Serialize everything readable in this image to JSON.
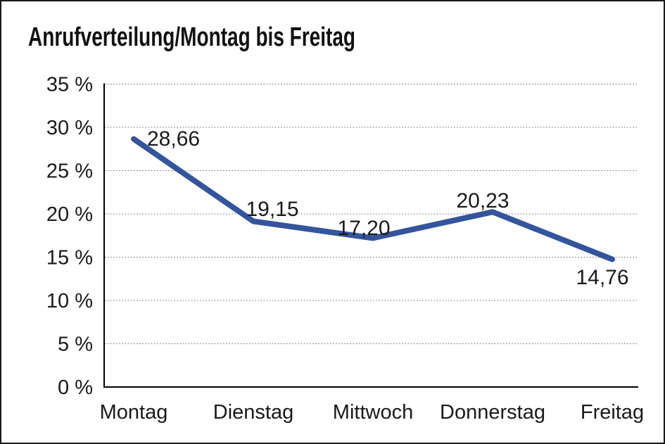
{
  "page": {
    "background": "#ffffff",
    "border_color": "#1a1a1a"
  },
  "chart_data": {
    "type": "line",
    "title": "Anrufverteilung/Montag bis Freitag",
    "categories": [
      "Montag",
      "Dienstag",
      "Mittwoch",
      "Donnerstag",
      "Freitag"
    ],
    "values": [
      28.66,
      19.15,
      17.2,
      20.23,
      14.76
    ],
    "data_labels": [
      "28,66",
      "19,15",
      "17,20",
      "20,23",
      "14,76"
    ],
    "y_ticks": [
      {
        "label": "35 %",
        "value": 35
      },
      {
        "label": "30 %",
        "value": 30
      },
      {
        "label": "25 %",
        "value": 25
      },
      {
        "label": "20 %",
        "value": 20
      },
      {
        "label": "15 %",
        "value": 15
      },
      {
        "label": "10 %",
        "value": 10
      },
      {
        "label": "5 %",
        "value": 5
      },
      {
        "label": "0 %",
        "value": 0
      }
    ],
    "ylim": [
      0,
      35
    ],
    "xlabel": "",
    "ylabel": "",
    "legend": "none",
    "grid": "horizontal-dotted",
    "line_color": "#34549C",
    "text_color": "#1a1a1a"
  }
}
